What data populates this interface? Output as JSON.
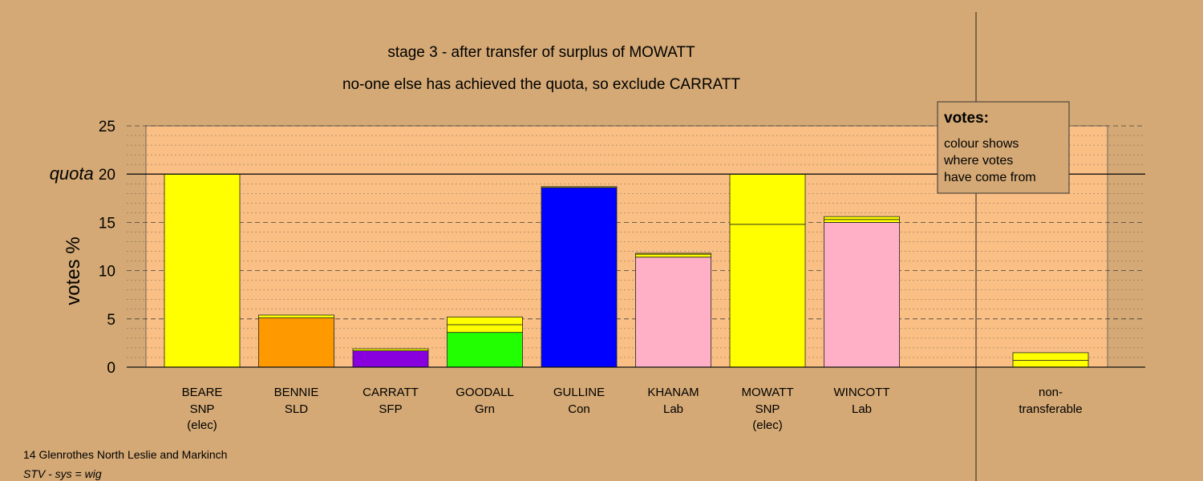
{
  "titles": {
    "line1": "stage 3 - after transfer of surplus of MOWATT",
    "line2": "no-one else has achieved the quota, so exclude CARRATT"
  },
  "legend": {
    "heading": "votes:",
    "lines": [
      "colour shows",
      "where votes",
      "have come from"
    ]
  },
  "footer": {
    "line1": "14 Glenrothes North Leslie and Markinch",
    "line2": "STV - sys = wig"
  },
  "colors": {
    "background": "#d4a975",
    "plot_area": "#f9bf84",
    "SNP": "#ffff00",
    "SLD": "#ff9900",
    "SFP": "#8800dd",
    "Grn": "#22ff00",
    "Con": "#0000ff",
    "Lab": "#ffb0c6"
  },
  "chart_data": {
    "type": "bar",
    "stacked": true,
    "ylabel": "votes %",
    "ylim": [
      0,
      25
    ],
    "yticks": [
      "0",
      "5",
      "10",
      "15",
      "quota 20",
      "25"
    ],
    "quota": 20,
    "quota_label": "quota",
    "grid": "dashed major every 5, dotted minor every 1",
    "legend_position": "top-right",
    "candidates": [
      {
        "name": "BEARE",
        "party": "SNP",
        "status": "(elec)",
        "segments": [
          {
            "from": "SNP",
            "value": 20.0
          }
        ]
      },
      {
        "name": "BENNIE",
        "party": "SLD",
        "status": "",
        "segments": [
          {
            "from": "SLD",
            "value": 5.1
          },
          {
            "from": "SNP",
            "value": 0.3
          }
        ]
      },
      {
        "name": "CARRATT",
        "party": "SFP",
        "status": "",
        "segments": [
          {
            "from": "SFP",
            "value": 1.7
          },
          {
            "from": "SNP",
            "value": 0.2
          }
        ]
      },
      {
        "name": "GOODALL",
        "party": "Grn",
        "status": "",
        "segments": [
          {
            "from": "Grn",
            "value": 3.6
          },
          {
            "from": "SNP",
            "value": 0.8
          },
          {
            "from": "SNP",
            "value": 0.8
          }
        ]
      },
      {
        "name": "GULLINE",
        "party": "Con",
        "status": "",
        "segments": [
          {
            "from": "Con",
            "value": 18.6
          },
          {
            "from": "SNP",
            "value": 0.1
          }
        ]
      },
      {
        "name": "KHANAM",
        "party": "Lab",
        "status": "",
        "segments": [
          {
            "from": "Lab",
            "value": 11.4
          },
          {
            "from": "SNP",
            "value": 0.3
          },
          {
            "from": "SNP",
            "value": 0.1
          }
        ]
      },
      {
        "name": "MOWATT",
        "party": "SNP",
        "status": "(elec)",
        "segments": [
          {
            "from": "SNP",
            "value": 14.8
          },
          {
            "from": "SNP",
            "value": 5.2
          }
        ]
      },
      {
        "name": "WINCOTT",
        "party": "Lab",
        "status": "",
        "segments": [
          {
            "from": "Lab",
            "value": 15.0
          },
          {
            "from": "SNP",
            "value": 0.3
          },
          {
            "from": "SNP",
            "value": 0.3
          }
        ]
      }
    ],
    "nontransferable": {
      "label1": "non-",
      "label2": "transferable",
      "segments": [
        {
          "from": "SNP",
          "value": 0.7
        },
        {
          "from": "SNP",
          "value": 0.8
        }
      ]
    }
  }
}
